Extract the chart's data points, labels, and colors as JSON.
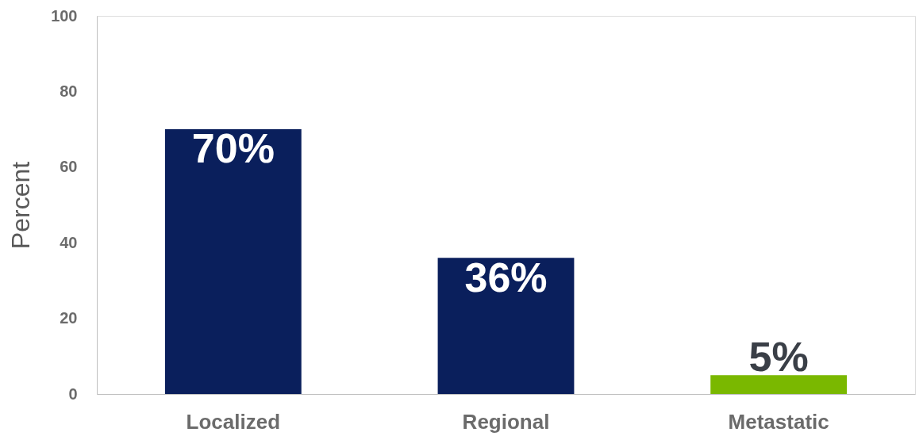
{
  "chart_data": {
    "type": "bar",
    "ylabel": "Percent",
    "categories": [
      "Localized",
      "Regional",
      "Metastatic"
    ],
    "values": [
      70,
      36,
      5
    ],
    "colors": [
      "#0a1f5c",
      "#0a1f5c",
      "#7ab800"
    ],
    "value_labels": [
      "70%",
      "36%",
      "5%"
    ],
    "ylim": [
      0,
      100
    ],
    "yticks": [
      0,
      20,
      40,
      60,
      80,
      100
    ],
    "grid": false
  }
}
